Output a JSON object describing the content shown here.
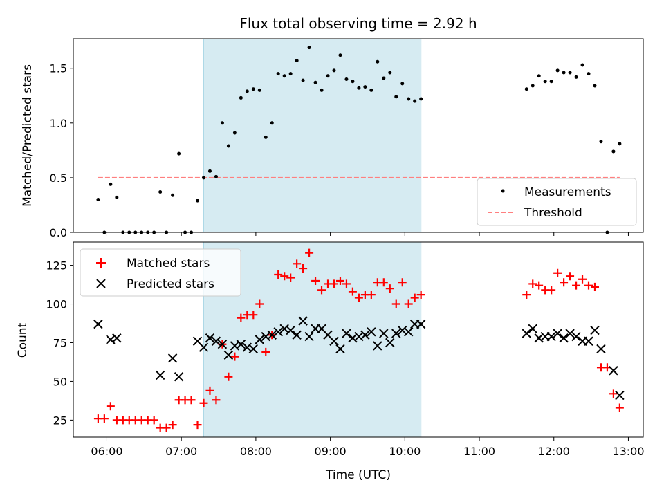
{
  "colors": {
    "shade": "#add8e6",
    "measurement": "#000000",
    "threshold": "#ff7f7f",
    "matched": "#ff0000",
    "predicted": "#000000"
  },
  "chart_data": [
    {
      "type": "scatter",
      "title": "Flux total observing time = 2.92 h",
      "ylabel": "Matched/Predicted stars",
      "xlabel": "",
      "xlim": [
        "05:33",
        "13:12"
      ],
      "ylim": [
        0,
        1.77
      ],
      "yticks": [
        0.0,
        0.5,
        1.0,
        1.5
      ],
      "ytick_labels": [
        "0.0",
        "0.5",
        "1.0",
        "1.5"
      ],
      "xticks": [
        "06:00",
        "07:00",
        "08:00",
        "09:00",
        "10:00",
        "11:00",
        "12:00",
        "13:00"
      ],
      "grid": false,
      "legend": {
        "position": "lower-right",
        "entries": [
          "Measurements",
          "Threshold"
        ]
      },
      "shaded_span": {
        "from": "07:18",
        "to": "10:13"
      },
      "series": [
        {
          "name": "Measurements",
          "kind": "dots",
          "points": [
            [
              "05:53",
              0.3
            ],
            [
              "05:58",
              0.0
            ],
            [
              "06:03",
              0.44
            ],
            [
              "06:08",
              0.32
            ],
            [
              "06:13",
              0.0
            ],
            [
              "06:18",
              0.0
            ],
            [
              "06:23",
              0.0
            ],
            [
              "06:28",
              0.0
            ],
            [
              "06:33",
              0.0
            ],
            [
              "06:38",
              0.0
            ],
            [
              "06:43",
              0.37
            ],
            [
              "06:48",
              0.0
            ],
            [
              "06:53",
              0.34
            ],
            [
              "06:58",
              0.72
            ],
            [
              "07:03",
              0.0
            ],
            [
              "07:08",
              0.0
            ],
            [
              "07:13",
              0.29
            ],
            [
              "07:18",
              0.5
            ],
            [
              "07:23",
              0.56
            ],
            [
              "07:28",
              0.51
            ],
            [
              "07:33",
              1.0
            ],
            [
              "07:38",
              0.79
            ],
            [
              "07:43",
              0.91
            ],
            [
              "07:48",
              1.23
            ],
            [
              "07:53",
              1.29
            ],
            [
              "07:58",
              1.31
            ],
            [
              "08:03",
              1.3
            ],
            [
              "08:08",
              0.87
            ],
            [
              "08:13",
              1.0
            ],
            [
              "08:18",
              1.45
            ],
            [
              "08:23",
              1.43
            ],
            [
              "08:28",
              1.45
            ],
            [
              "08:33",
              1.57
            ],
            [
              "08:38",
              1.39
            ],
            [
              "08:43",
              1.69
            ],
            [
              "08:48",
              1.37
            ],
            [
              "08:53",
              1.3
            ],
            [
              "08:58",
              1.43
            ],
            [
              "09:03",
              1.48
            ],
            [
              "09:08",
              1.62
            ],
            [
              "09:13",
              1.4
            ],
            [
              "09:18",
              1.38
            ],
            [
              "09:23",
              1.32
            ],
            [
              "09:28",
              1.33
            ],
            [
              "09:33",
              1.3
            ],
            [
              "09:38",
              1.56
            ],
            [
              "09:43",
              1.41
            ],
            [
              "09:48",
              1.46
            ],
            [
              "09:53",
              1.24
            ],
            [
              "09:58",
              1.36
            ],
            [
              "10:03",
              1.22
            ],
            [
              "10:08",
              1.2
            ],
            [
              "10:13",
              1.22
            ],
            [
              "11:38",
              1.31
            ],
            [
              "11:43",
              1.34
            ],
            [
              "11:48",
              1.43
            ],
            [
              "11:53",
              1.38
            ],
            [
              "11:58",
              1.38
            ],
            [
              "12:03",
              1.48
            ],
            [
              "12:08",
              1.46
            ],
            [
              "12:13",
              1.46
            ],
            [
              "12:18",
              1.42
            ],
            [
              "12:23",
              1.53
            ],
            [
              "12:28",
              1.45
            ],
            [
              "12:33",
              1.34
            ],
            [
              "12:38",
              0.83
            ],
            [
              "12:43",
              0.0
            ],
            [
              "12:48",
              0.74
            ],
            [
              "12:53",
              0.81
            ]
          ]
        },
        {
          "name": "Threshold",
          "kind": "dashed-line",
          "points": [
            [
              "05:53",
              0.5
            ],
            [
              "12:53",
              0.5
            ]
          ]
        }
      ]
    },
    {
      "type": "scatter",
      "title": "",
      "ylabel": "Count",
      "xlabel": "Time (UTC)",
      "xlim": [
        "05:33",
        "13:12"
      ],
      "ylim": [
        14,
        140
      ],
      "yticks": [
        25,
        50,
        75,
        100,
        125
      ],
      "ytick_labels": [
        "25",
        "50",
        "75",
        "100",
        "125"
      ],
      "xticks": [
        "06:00",
        "07:00",
        "08:00",
        "09:00",
        "10:00",
        "11:00",
        "12:00",
        "13:00"
      ],
      "xtick_labels": [
        "06:00",
        "07:00",
        "08:00",
        "09:00",
        "10:00",
        "11:00",
        "12:00",
        "13:00"
      ],
      "grid": false,
      "legend": {
        "position": "upper-left",
        "entries": [
          "Matched stars",
          "Predicted stars"
        ]
      },
      "shaded_span": {
        "from": "07:18",
        "to": "10:13"
      },
      "series": [
        {
          "name": "Matched stars",
          "kind": "plus",
          "points": [
            [
              "05:53",
              26
            ],
            [
              "05:58",
              26
            ],
            [
              "06:03",
              34
            ],
            [
              "06:08",
              25
            ],
            [
              "06:13",
              25
            ],
            [
              "06:18",
              25
            ],
            [
              "06:23",
              25
            ],
            [
              "06:28",
              25
            ],
            [
              "06:33",
              25
            ],
            [
              "06:38",
              25
            ],
            [
              "06:43",
              20
            ],
            [
              "06:48",
              20
            ],
            [
              "06:53",
              22
            ],
            [
              "06:58",
              38
            ],
            [
              "07:03",
              38
            ],
            [
              "07:08",
              38
            ],
            [
              "07:13",
              22
            ],
            [
              "07:18",
              36
            ],
            [
              "07:23",
              44
            ],
            [
              "07:28",
              38
            ],
            [
              "07:33",
              74
            ],
            [
              "07:38",
              53
            ],
            [
              "07:43",
              66
            ],
            [
              "07:48",
              91
            ],
            [
              "07:53",
              93
            ],
            [
              "07:58",
              93
            ],
            [
              "08:03",
              100
            ],
            [
              "08:08",
              69
            ],
            [
              "08:13",
              80
            ],
            [
              "08:18",
              119
            ],
            [
              "08:23",
              118
            ],
            [
              "08:28",
              117
            ],
            [
              "08:33",
              126
            ],
            [
              "08:38",
              123
            ],
            [
              "08:43",
              133
            ],
            [
              "08:48",
              115
            ],
            [
              "08:53",
              109
            ],
            [
              "08:58",
              113
            ],
            [
              "09:03",
              113
            ],
            [
              "09:08",
              115
            ],
            [
              "09:13",
              113
            ],
            [
              "09:18",
              108
            ],
            [
              "09:23",
              104
            ],
            [
              "09:28",
              106
            ],
            [
              "09:33",
              106
            ],
            [
              "09:38",
              114
            ],
            [
              "09:43",
              114
            ],
            [
              "09:48",
              110
            ],
            [
              "09:53",
              100
            ],
            [
              "09:58",
              114
            ],
            [
              "10:03",
              100
            ],
            [
              "10:08",
              104
            ],
            [
              "10:13",
              106
            ],
            [
              "11:38",
              106
            ],
            [
              "11:43",
              113
            ],
            [
              "11:48",
              112
            ],
            [
              "11:53",
              109
            ],
            [
              "11:58",
              109
            ],
            [
              "12:03",
              120
            ],
            [
              "12:08",
              114
            ],
            [
              "12:13",
              118
            ],
            [
              "12:18",
              112
            ],
            [
              "12:23",
              116
            ],
            [
              "12:28",
              112
            ],
            [
              "12:33",
              111
            ],
            [
              "12:38",
              59
            ],
            [
              "12:43",
              59
            ],
            [
              "12:48",
              42
            ],
            [
              "12:53",
              33
            ]
          ]
        },
        {
          "name": "Predicted stars",
          "kind": "x",
          "points": [
            [
              "05:53",
              87
            ],
            [
              "06:03",
              77
            ],
            [
              "06:08",
              78
            ],
            [
              "06:43",
              54
            ],
            [
              "06:53",
              65
            ],
            [
              "06:58",
              53
            ],
            [
              "07:13",
              76
            ],
            [
              "07:18",
              72
            ],
            [
              "07:23",
              78
            ],
            [
              "07:28",
              76
            ],
            [
              "07:33",
              74
            ],
            [
              "07:38",
              67
            ],
            [
              "07:43",
              73
            ],
            [
              "07:48",
              74
            ],
            [
              "07:53",
              72
            ],
            [
              "07:58",
              71
            ],
            [
              "08:03",
              77
            ],
            [
              "08:08",
              79
            ],
            [
              "08:13",
              80
            ],
            [
              "08:18",
              82
            ],
            [
              "08:23",
              84
            ],
            [
              "08:28",
              83
            ],
            [
              "08:33",
              80
            ],
            [
              "08:38",
              89
            ],
            [
              "08:43",
              79
            ],
            [
              "08:48",
              84
            ],
            [
              "08:53",
              84
            ],
            [
              "08:58",
              80
            ],
            [
              "09:03",
              76
            ],
            [
              "09:08",
              71
            ],
            [
              "09:13",
              81
            ],
            [
              "09:18",
              78
            ],
            [
              "09:23",
              79
            ],
            [
              "09:28",
              80
            ],
            [
              "09:33",
              82
            ],
            [
              "09:38",
              73
            ],
            [
              "09:43",
              81
            ],
            [
              "09:48",
              75
            ],
            [
              "09:53",
              81
            ],
            [
              "09:58",
              83
            ],
            [
              "10:03",
              82
            ],
            [
              "10:08",
              87
            ],
            [
              "10:13",
              87
            ],
            [
              "11:38",
              81
            ],
            [
              "11:43",
              84
            ],
            [
              "11:48",
              78
            ],
            [
              "11:53",
              79
            ],
            [
              "11:58",
              79
            ],
            [
              "12:03",
              81
            ],
            [
              "12:08",
              78
            ],
            [
              "12:13",
              81
            ],
            [
              "12:18",
              79
            ],
            [
              "12:23",
              76
            ],
            [
              "12:28",
              76
            ],
            [
              "12:33",
              83
            ],
            [
              "12:38",
              71
            ],
            [
              "12:48",
              57
            ],
            [
              "12:53",
              41
            ]
          ]
        }
      ]
    }
  ]
}
